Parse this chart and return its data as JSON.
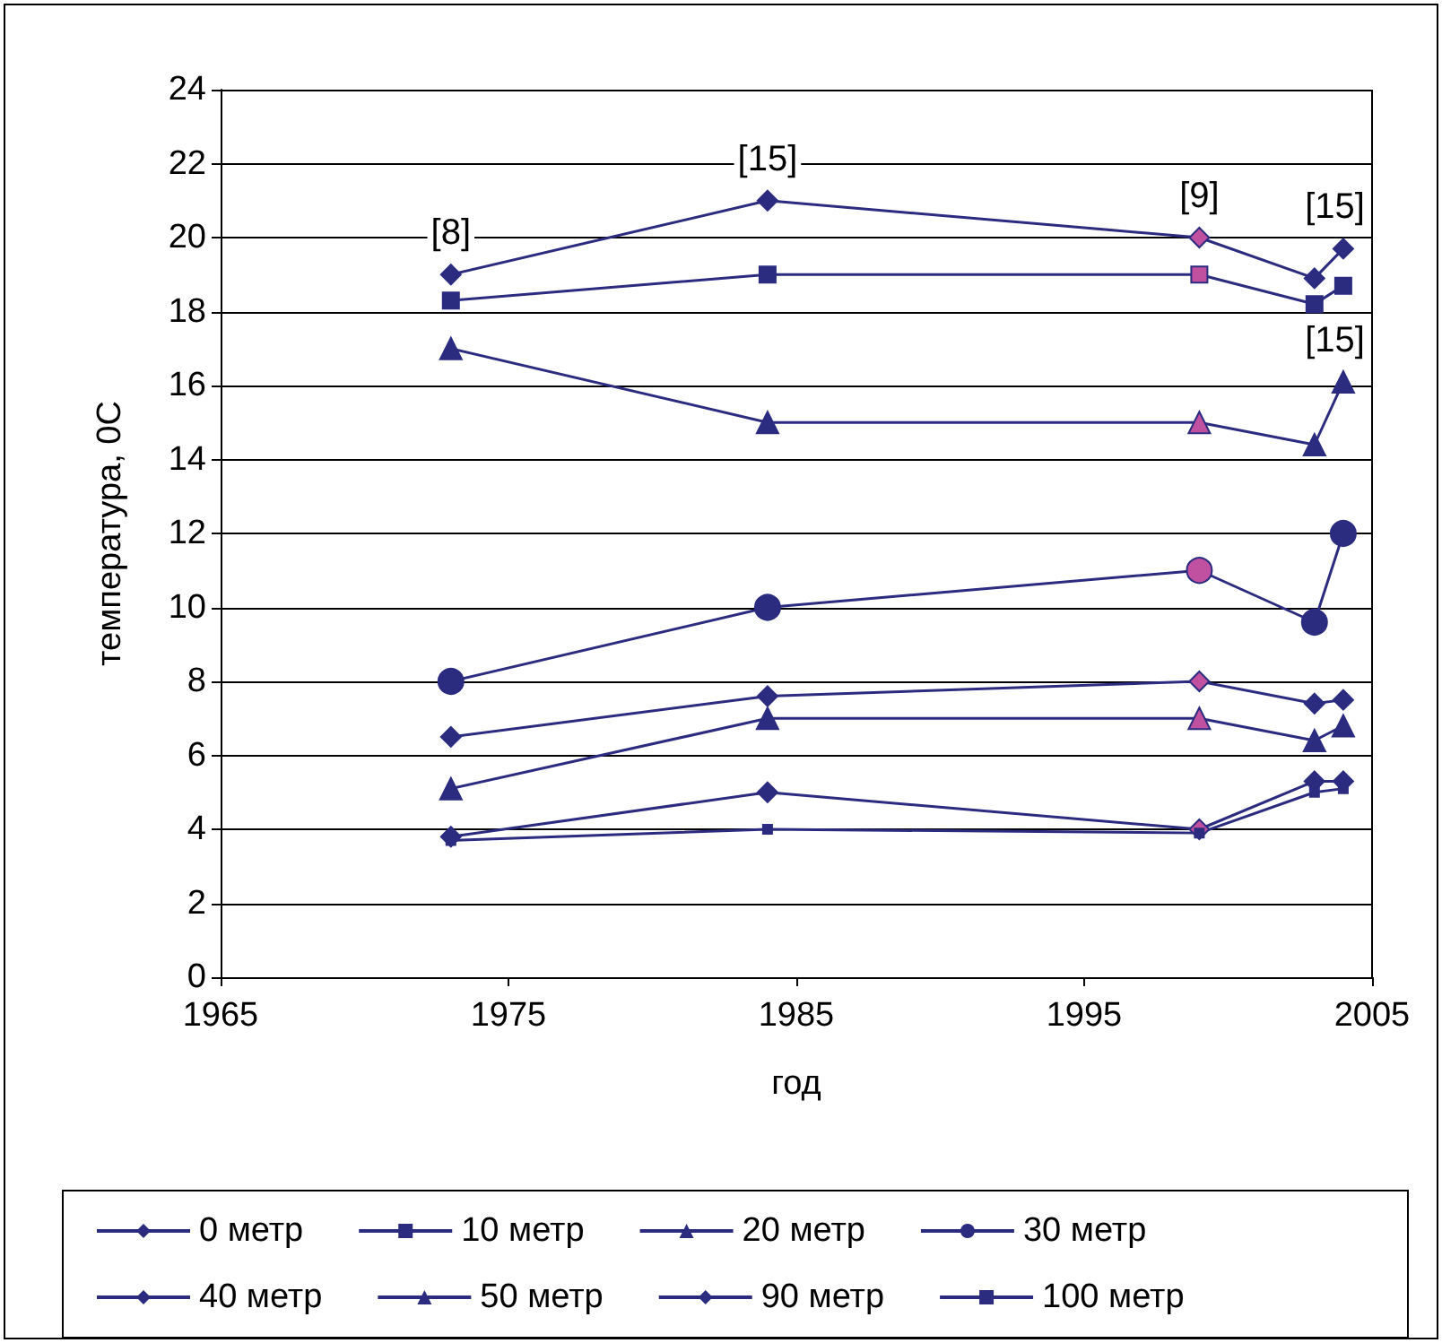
{
  "chart_data": {
    "type": "line",
    "xlabel": "год",
    "ylabel": "температура, 0С",
    "x": [
      1973,
      1984,
      1999,
      2003,
      2004
    ],
    "xlim": [
      1965,
      2005
    ],
    "xticks": [
      1965,
      1975,
      1985,
      1995,
      2005
    ],
    "ylim": [
      0,
      24
    ],
    "yticks": [
      0,
      2,
      4,
      6,
      8,
      10,
      12,
      14,
      16,
      18,
      20,
      22,
      24
    ],
    "grid": "y",
    "legend": "bottom",
    "series": [
      {
        "name": "0 метр",
        "color": "#2b2b80",
        "marker": "diamond",
        "colors": [
          "#2b2b80",
          "#2b2b80",
          "#c050a0",
          "#2b2b80",
          "#2b2b80"
        ],
        "values": [
          19,
          21,
          20,
          18.9,
          19.7
        ]
      },
      {
        "name": "10 метр",
        "color": "#2b2b80",
        "marker": "square",
        "colors": [
          "#2b2b80",
          "#2b2b80",
          "#c050a0",
          "#2b2b80",
          "#2b2b80"
        ],
        "values": [
          18.3,
          19,
          19,
          18.2,
          18.7
        ]
      },
      {
        "name": "20 метр",
        "color": "#2b2b80",
        "marker": "triangle",
        "colors": [
          "#2b2b80",
          "#2b2b80",
          "#c050a0",
          "#2b2b80",
          "#2b2b80"
        ],
        "values": [
          17,
          15,
          15,
          14.4,
          16.1
        ]
      },
      {
        "name": "30 метр",
        "color": "#2b2b80",
        "marker": "circle",
        "colors": [
          "#2b2b80",
          "#2b2b80",
          "#c050a0",
          "#2b2b80",
          "#2b2b80"
        ],
        "values": [
          8,
          10,
          11,
          9.6,
          12
        ]
      },
      {
        "name": "40 метр",
        "color": "#2b2b80",
        "marker": "diamond",
        "colors": [
          "#2b2b80",
          "#2b2b80",
          "#c050a0",
          "#2b2b80",
          "#2b2b80"
        ],
        "values": [
          6.5,
          7.6,
          8,
          7.4,
          7.5
        ]
      },
      {
        "name": "50 метр",
        "color": "#2b2b80",
        "marker": "triangle",
        "colors": [
          "#2b2b80",
          "#2b2b80",
          "#c050a0",
          "#2b2b80",
          "#2b2b80"
        ],
        "values": [
          5.1,
          7,
          7,
          6.4,
          6.8
        ]
      },
      {
        "name": "90 метр",
        "color": "#2b2b80",
        "marker": "diamond",
        "colors": [
          "#2b2b80",
          "#2b2b80",
          "#c050a0",
          "#2b2b80",
          "#2b2b80"
        ],
        "values": [
          3.8,
          5,
          4,
          5.3,
          5.3
        ]
      },
      {
        "name": "100 метр",
        "color": "#2b2b80",
        "marker": "square",
        "values": [
          3.7,
          4,
          3.9,
          5,
          5.1
        ]
      }
    ],
    "annotations": [
      {
        "text": "[8]",
        "x": 1973,
        "y": 19
      },
      {
        "text": "[15]",
        "x": 1984,
        "y": 21
      },
      {
        "text": "[9]",
        "x": 1999,
        "y": 20
      },
      {
        "text": "[15]",
        "x": 2004,
        "y": 19.7
      },
      {
        "text": "[15]",
        "x": 2004,
        "y": 16.1
      }
    ]
  }
}
